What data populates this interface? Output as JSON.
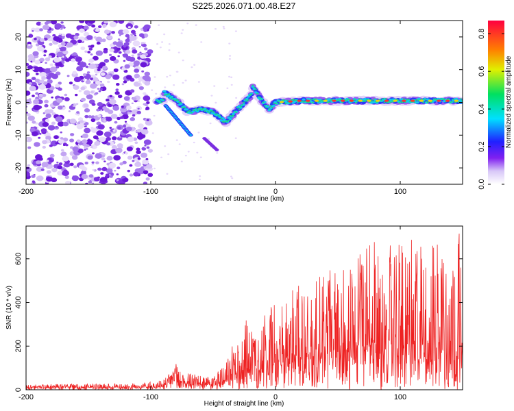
{
  "title": "S225.2026.071.00.48.E27",
  "chart_data": [
    {
      "type": "heatmap",
      "name": "spectrogram",
      "xlabel": "Height of straight line (km)",
      "ylabel": "Frequency (Hz)",
      "xlim": [
        -200,
        150
      ],
      "ylim": [
        -25,
        25
      ],
      "xticks": [
        -200,
        -100,
        0,
        100
      ],
      "yticks": [
        -20,
        -10,
        0,
        10,
        20
      ],
      "ridge": [
        [
          -90,
          3
        ],
        [
          -80,
          1
        ],
        [
          -70,
          -3
        ],
        [
          -60,
          -2
        ],
        [
          -50,
          -3
        ],
        [
          -40,
          -6
        ],
        [
          -30,
          -2
        ],
        [
          -25,
          0
        ],
        [
          -20,
          2
        ],
        [
          -18,
          5
        ],
        [
          -12,
          1
        ],
        [
          -5,
          -2
        ],
        [
          0,
          0
        ],
        [
          20,
          0.5
        ],
        [
          40,
          0.5
        ],
        [
          60,
          0.5
        ],
        [
          80,
          0.5
        ],
        [
          100,
          0.5
        ],
        [
          120,
          0.5
        ],
        [
          150,
          0.5
        ]
      ],
      "colorbar": {
        "label": "Normalized spectral amplitude",
        "range": [
          0,
          0.87
        ],
        "ticks": [
          0.0,
          0.2,
          0.4,
          0.6,
          0.8
        ]
      }
    },
    {
      "type": "line",
      "name": "snr",
      "xlabel": "Height of straight line (km)",
      "ylabel": "SNR (10 * v/v)",
      "xlim": [
        -200,
        150
      ],
      "ylim": [
        0,
        750
      ],
      "xticks": [
        -200,
        -100,
        0,
        100
      ],
      "yticks": [
        0,
        200,
        400,
        600
      ],
      "color": "#ee2222",
      "envelope": [
        [
          -200,
          15,
          25
        ],
        [
          -110,
          15,
          30
        ],
        [
          -90,
          20,
          45
        ],
        [
          -80,
          50,
          120
        ],
        [
          -70,
          40,
          80
        ],
        [
          -60,
          30,
          70
        ],
        [
          -50,
          25,
          60
        ],
        [
          -40,
          50,
          120
        ],
        [
          -30,
          100,
          270
        ],
        [
          -25,
          130,
          350
        ],
        [
          -20,
          120,
          330
        ],
        [
          -10,
          150,
          350
        ],
        [
          0,
          150,
          400
        ],
        [
          10,
          170,
          430
        ],
        [
          20,
          200,
          500
        ],
        [
          40,
          200,
          550
        ],
        [
          60,
          230,
          620
        ],
        [
          80,
          230,
          680
        ],
        [
          100,
          230,
          680
        ],
        [
          120,
          230,
          700
        ],
        [
          140,
          230,
          720
        ],
        [
          150,
          230,
          720
        ]
      ]
    }
  ]
}
